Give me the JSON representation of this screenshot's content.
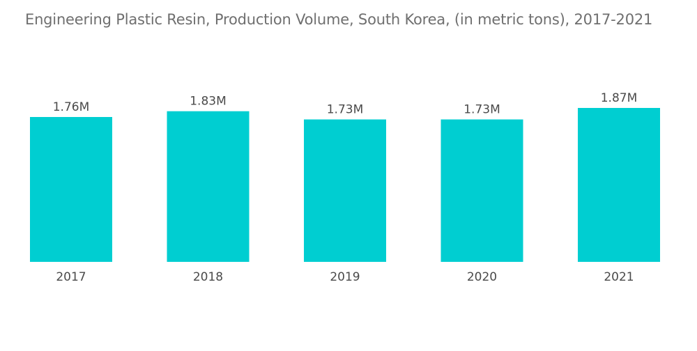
{
  "chart_data": {
    "type": "bar",
    "title": "Engineering Plastic Resin, Production Volume, South Korea, (in metric tons), 2017-2021",
    "categories": [
      "2017",
      "2018",
      "2019",
      "2020",
      "2021"
    ],
    "values": [
      1.76,
      1.83,
      1.73,
      1.73,
      1.87
    ],
    "value_unit": "M",
    "data_labels": [
      "1.76M",
      "1.83M",
      "1.73M",
      "1.73M",
      "1.87M"
    ],
    "xlabel": "",
    "ylabel": "",
    "ylim": [
      0,
      1.87
    ],
    "bar_color": "#00CED1",
    "grid": false,
    "legend": "none"
  }
}
